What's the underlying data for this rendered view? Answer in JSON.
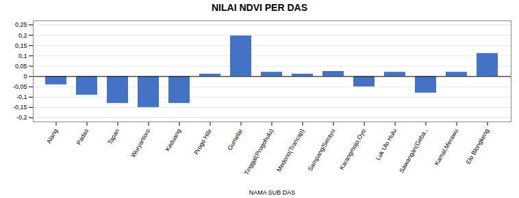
{
  "chart_data": {
    "type": "bar",
    "title": "NILAI NDVI PER DAS",
    "xlabel": "NAMA SUB DAS",
    "categories": [
      "Alang",
      "Padas",
      "Tapan",
      "Wuryantoro",
      "Keduang",
      "Progo Hilir",
      "Gumelar",
      "Tinggal(Progohulu)",
      "Medono(Trancap)",
      "Sampang/Serayu",
      "Karangmojo,Oyo",
      "Luk Ulo Hulu",
      "Sawangan(Geba.,",
      "Kamal,Merawu",
      "Elo Blongkeng"
    ],
    "values": [
      -0.04,
      -0.09,
      -0.13,
      -0.15,
      -0.13,
      0.012,
      0.197,
      0.021,
      0.012,
      0.025,
      -0.05,
      0.021,
      -0.08,
      0.021,
      0.112
    ],
    "color": "#4472C4",
    "ylim": [
      -0.22,
      0.27
    ],
    "yticks": [
      {
        "value": -0.2,
        "label": "-0,2"
      },
      {
        "value": -0.15,
        "label": "-0,15"
      },
      {
        "value": -0.1,
        "label": "-0,1"
      },
      {
        "value": -0.05,
        "label": "-0,05"
      },
      0,
      {
        "value": 0.05,
        "label": "0,05"
      },
      {
        "value": 0.1,
        "label": "0,1"
      },
      {
        "value": 0.15,
        "label": "0,15"
      },
      {
        "value": 0.2,
        "label": "0,2"
      },
      {
        "value": 0.25,
        "label": "0,25"
      }
    ],
    "grid": true
  }
}
